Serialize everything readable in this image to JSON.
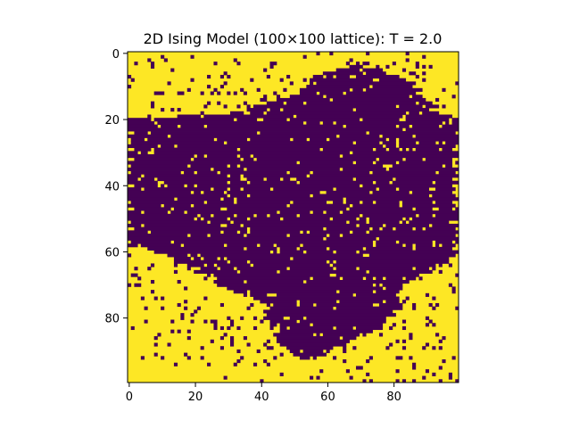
{
  "chart_data": {
    "type": "heatmap",
    "title": "2D Ising Model (100×100 lattice): T = 2.0",
    "xlabel": "",
    "ylabel": "",
    "grid": false,
    "legend": "none",
    "lattice_size": [
      100,
      100
    ],
    "xlim": [
      0,
      99
    ],
    "ylim": [
      99,
      0
    ],
    "x_ticks": [
      0,
      20,
      40,
      60,
      80
    ],
    "y_ticks": [
      0,
      20,
      40,
      60,
      80
    ],
    "values": [
      -1,
      1
    ],
    "colors": {
      "-1": "#440154",
      "1": "#fde725"
    },
    "domain_boundary": {
      "description_rows": "for each row index, the column range [start, end] occupied by spin -1 (purple)",
      "rows": [
        [
          0,
          [
            99,
            99
          ]
        ],
        [
          2,
          [
            99,
            99
          ]
        ],
        [
          4,
          [
            68,
            72
          ]
        ],
        [
          6,
          [
            58,
            78
          ]
        ],
        [
          8,
          [
            54,
            84
          ]
        ],
        [
          10,
          [
            52,
            86
          ]
        ],
        [
          12,
          [
            50,
            88
          ]
        ],
        [
          14,
          [
            46,
            90
          ]
        ],
        [
          16,
          [
            40,
            92
          ]
        ],
        [
          18,
          [
            32,
            94
          ]
        ],
        [
          20,
          [
            0,
            99
          ]
        ],
        [
          30,
          [
            0,
            99
          ]
        ],
        [
          40,
          [
            0,
            99
          ]
        ],
        [
          50,
          [
            0,
            99
          ]
        ],
        [
          55,
          [
            0,
            99
          ]
        ],
        [
          58,
          [
            0,
            99
          ]
        ],
        [
          60,
          [
            8,
            99
          ]
        ],
        [
          62,
          [
            12,
            97
          ]
        ],
        [
          64,
          [
            18,
            94
          ]
        ],
        [
          66,
          [
            22,
            90
          ]
        ],
        [
          68,
          [
            26,
            86
          ]
        ],
        [
          70,
          [
            28,
            84
          ]
        ],
        [
          72,
          [
            32,
            82
          ]
        ],
        [
          74,
          [
            36,
            82
          ]
        ],
        [
          76,
          [
            40,
            82
          ]
        ],
        [
          78,
          [
            42,
            80
          ]
        ],
        [
          80,
          [
            42,
            78
          ]
        ],
        [
          82,
          [
            44,
            76
          ]
        ],
        [
          84,
          [
            44,
            74
          ]
        ],
        [
          86,
          [
            46,
            70
          ]
        ],
        [
          88,
          [
            46,
            66
          ]
        ],
        [
          90,
          [
            48,
            60
          ]
        ],
        [
          92,
          [
            50,
            56
          ]
        ],
        [
          94,
          [
            99,
            99
          ]
        ],
        [
          99,
          [
            99,
            99
          ]
        ]
      ]
    }
  }
}
